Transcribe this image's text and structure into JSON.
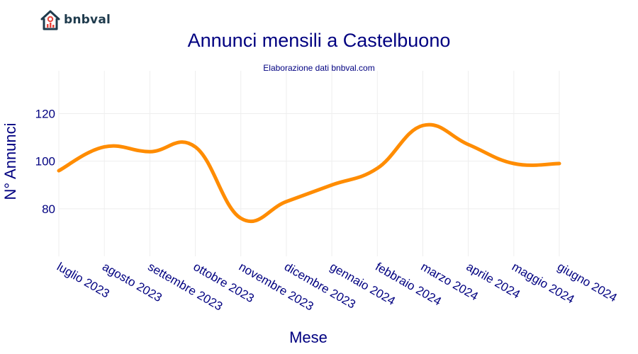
{
  "brand": {
    "name": "bnbval"
  },
  "chart_data": {
    "type": "line",
    "title": "Annunci mensili a Castelbuono",
    "subtitle": "Elaborazione dati bnbval.com",
    "xlabel": "Mese",
    "ylabel": "N° Annunci",
    "categories": [
      "luglio 2023",
      "agosto 2023",
      "settembre 2023",
      "ottobre 2023",
      "novembre 2023",
      "dicembre 2023",
      "gennaio 2024",
      "febbraio 2024",
      "marzo 2024",
      "aprile 2024",
      "maggio 2024",
      "giugno 2024"
    ],
    "series": [
      {
        "values": [
          96,
          106,
          104,
          106,
          76,
          83,
          90,
          97,
          115,
          107,
          99,
          99
        ],
        "color": "#ff8c00"
      }
    ],
    "ylim": [
      60,
      138
    ],
    "yticks": [
      80,
      100,
      120
    ],
    "grid": true,
    "colors": {
      "text": "#000080",
      "grid": "#eeeeee",
      "line": "#ff8c00"
    }
  }
}
